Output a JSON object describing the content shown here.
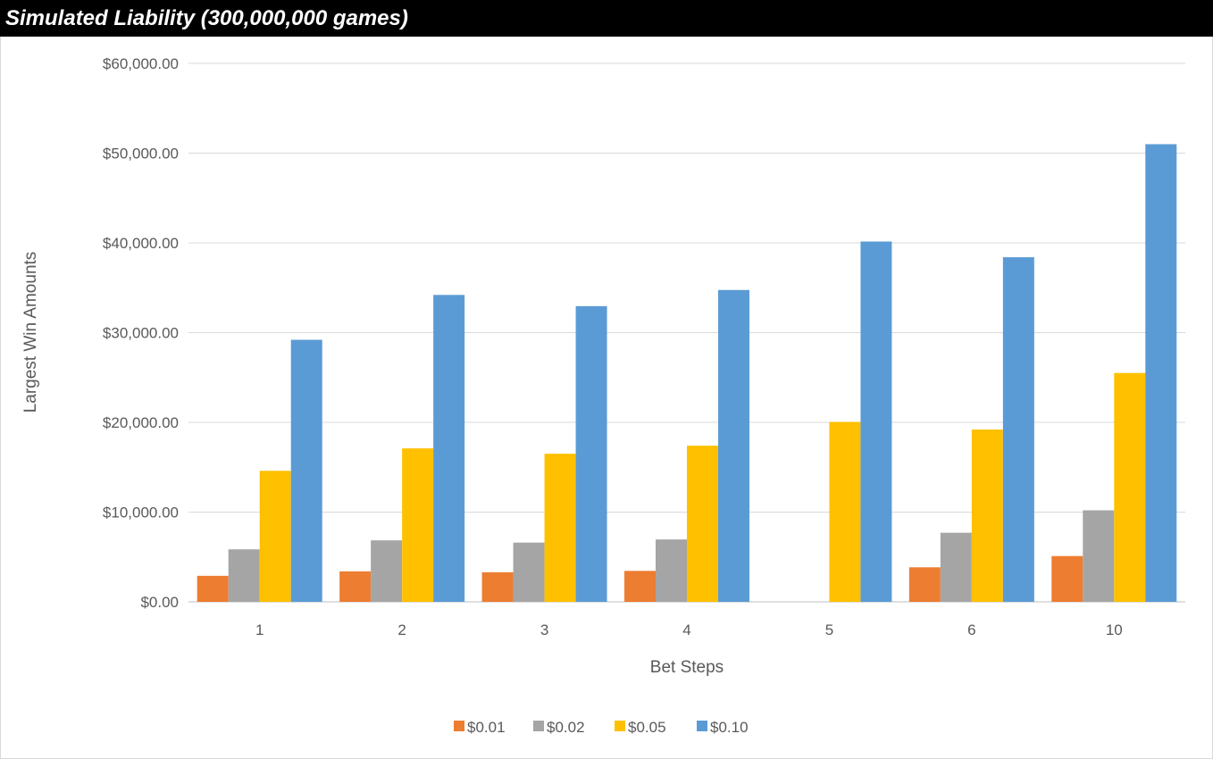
{
  "title": "Simulated Liability (300,000,000 games)",
  "chart_data": {
    "type": "bar",
    "title": "Simulated Liability (300,000,000 games)",
    "xlabel": "Bet Steps",
    "ylabel": "Largest Win Amounts",
    "categories": [
      "1",
      "2",
      "3",
      "4",
      "5",
      "6",
      "10"
    ],
    "ylim": [
      0,
      60000
    ],
    "ytick_values": [
      0,
      10000,
      20000,
      30000,
      40000,
      50000,
      60000
    ],
    "ytick_labels": [
      "$0.00",
      "$10,000.00",
      "$20,000.00",
      "$30,000.00",
      "$40,000.00",
      "$50,000.00",
      "$60,000.00"
    ],
    "grid": true,
    "legend_position": "bottom",
    "series": [
      {
        "name": "$0.01",
        "color": "#ED7D31",
        "values": [
          2900,
          3400,
          3300,
          3450,
          0,
          3850,
          5100
        ]
      },
      {
        "name": "$0.02",
        "color": "#A5A5A5",
        "values": [
          5850,
          6850,
          6600,
          6950,
          0,
          7700,
          10200
        ]
      },
      {
        "name": "$0.05",
        "color": "#FFC000",
        "values": [
          14600,
          17100,
          16500,
          17400,
          20050,
          19200,
          25500
        ]
      },
      {
        "name": "$0.10",
        "color": "#5B9BD5",
        "values": [
          29200,
          34200,
          32950,
          34750,
          40150,
          38400,
          51000
        ]
      }
    ]
  }
}
